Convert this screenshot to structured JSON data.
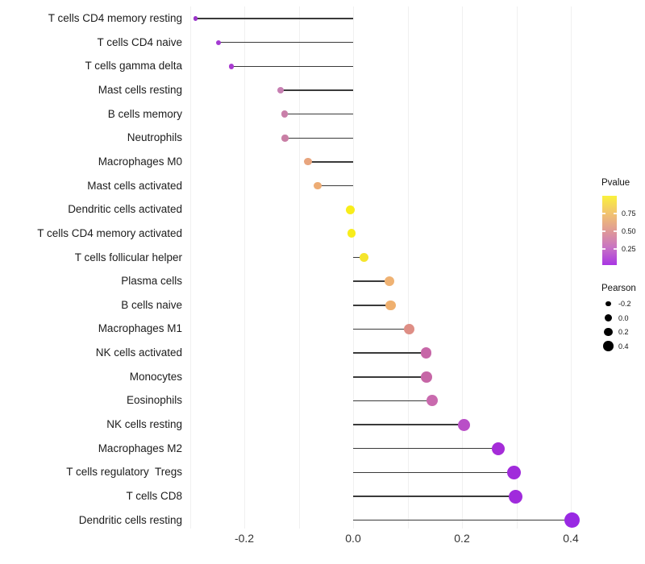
{
  "chart_data": {
    "type": "scatter",
    "subtype": "lollipop",
    "title": "",
    "xlabel": "",
    "ylabel": "",
    "xlim": [
      -0.305,
      0.445
    ],
    "x_ticks": [
      -0.2,
      0.0,
      0.2,
      0.4
    ],
    "x_tick_labels": [
      "-0.2",
      "0.0",
      "0.2",
      "0.4"
    ],
    "gridline_values": [
      -0.3,
      -0.2,
      -0.1,
      0.0,
      0.1,
      0.2,
      0.3,
      0.4
    ],
    "grid": "vertical-only",
    "size_encoding": "Pearson",
    "color_encoding": "Pvalue",
    "categories": [
      "T cells CD4 memory resting",
      "T cells CD4 naive",
      "T cells gamma delta",
      "Mast cells resting",
      "B cells memory",
      "Neutrophils",
      "Macrophages M0",
      "Mast cells activated",
      "Dendritic cells activated",
      "T cells CD4 memory activated",
      "T cells follicular helper",
      "Plasma cells",
      "B cells naive",
      "Macrophages M1",
      "NK cells activated",
      "Monocytes",
      "Eosinophils",
      "NK cells resting",
      "Macrophages M2",
      "T cells regulatory  Tregs",
      "T cells CD8",
      "Dendritic cells resting"
    ],
    "series": [
      {
        "name": "Pearson",
        "values": [
          -0.29,
          -0.248,
          -0.224,
          -0.133,
          -0.126,
          -0.125,
          -0.083,
          -0.065,
          -0.005,
          -0.003,
          0.02,
          0.067,
          0.069,
          0.103,
          0.134,
          0.135,
          0.145,
          0.203,
          0.267,
          0.296,
          0.299,
          0.402
        ]
      }
    ],
    "point_colors_by_pvalue": [
      "#9A35C9",
      "#A43BD2",
      "#A93BD0",
      "#C77FB2",
      "#C97FA9",
      "#C97FA5",
      "#E8A57E",
      "#EDAC74",
      "#F8ED1B",
      "#F8ED1B",
      "#F5E52C",
      "#EFB273",
      "#EFB06F",
      "#DE8E85",
      "#C767A8",
      "#C666A6",
      "#C96AAE",
      "#B94FC7",
      "#A52CD8",
      "#A02BDB",
      "#A02BDC",
      "#9929E3"
    ],
    "stem_color": "#3a3a3a",
    "legend_position": "right"
  },
  "legend_pvalue": {
    "title": "Pvalue",
    "tick_labels": [
      "0.75",
      "0.50",
      "0.25"
    ],
    "gradient_top_to_bottom": [
      "#FAF13C",
      "#F2C46F",
      "#E09B95",
      "#C873C4",
      "#A936E3"
    ]
  },
  "legend_pearson": {
    "title": "Pearson",
    "entries": [
      {
        "label": "-0.2",
        "size": 6.5
      },
      {
        "label": "0.0",
        "size": 9
      },
      {
        "label": "0.2",
        "size": 10.5
      },
      {
        "label": "0.4",
        "size": 12.5
      }
    ]
  }
}
